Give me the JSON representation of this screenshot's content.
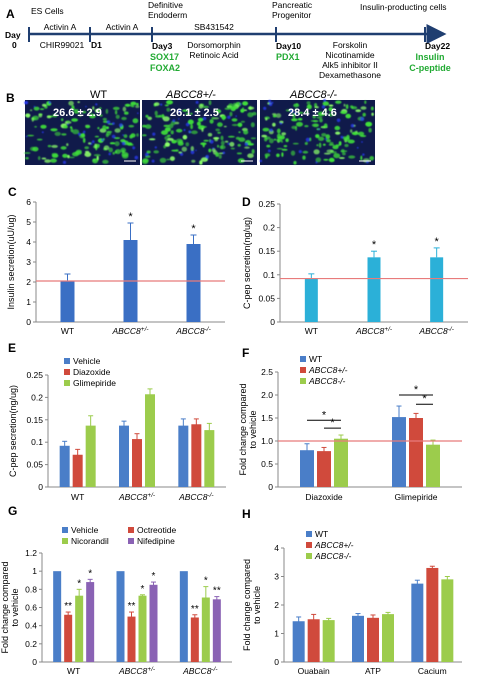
{
  "figure": {
    "panel_letters": {
      "A": "A",
      "B": "B",
      "C": "C",
      "D": "D",
      "E": "E",
      "F": "F",
      "G": "G",
      "H": "H"
    }
  },
  "timeline": {
    "stage_top": [
      "ES Cells",
      "Definitive",
      "Endoderm",
      "Pancreatic",
      "Progenitor",
      "Insulin-producting  cells"
    ],
    "day0a": "Day",
    "day0b": "0",
    "d1": "D1",
    "day3": "Day3",
    "day10": "Day10",
    "day22": "Day22",
    "seg1": [
      "Activin A",
      "CHIR99021"
    ],
    "seg2": [
      "Activin A"
    ],
    "seg3": [
      "SB431542",
      "Dorsomorphin",
      "Retinoic  Acid"
    ],
    "seg4": [
      "Forskolin",
      "Nicotinamide",
      "Alk5 inhibitor II",
      "Dexamethasone"
    ],
    "markers3": [
      "SOX17",
      "FOXA2"
    ],
    "markers10": [
      "PDX1"
    ],
    "markers22": [
      "Insulin",
      "C-peptide"
    ],
    "marker_color": "#22aa33"
  },
  "micrographs": [
    {
      "label": "WT",
      "value": "26.6 ± 2.9"
    },
    {
      "label": "ABCC8+/-",
      "value": "26.1 ± 2.5"
    },
    {
      "label": "ABCC8-/-",
      "value": "28.4 ± 4.6"
    }
  ],
  "chart_data": [
    {
      "panel": "C",
      "type": "bar",
      "categories": [
        "WT",
        "ABCC8+/-",
        "ABCC8-/-"
      ],
      "values": [
        2.05,
        4.1,
        3.9
      ],
      "errors": [
        0.35,
        0.85,
        0.45
      ],
      "sig": [
        "",
        "*",
        "*"
      ],
      "ylabel": "Insulin secretion(uU/ug)",
      "ylim": [
        0,
        6
      ],
      "yticks": [
        "0",
        "1",
        "2",
        "3",
        "4",
        "5",
        "6"
      ],
      "refline": 2.05,
      "color": "#3a6fc4"
    },
    {
      "panel": "D",
      "type": "bar",
      "categories": [
        "WT",
        "ABCC8+/-",
        "ABCC8-/-"
      ],
      "values": [
        0.092,
        0.137,
        0.137
      ],
      "errors": [
        0.01,
        0.013,
        0.02
      ],
      "sig": [
        "",
        "*",
        "*"
      ],
      "ylabel": "C-pep secretion(ng/ug)",
      "ylim": [
        0,
        0.25
      ],
      "yticks": [
        "0",
        "0.05",
        "0.1",
        "0.15",
        "0.2",
        "0.25"
      ],
      "refline": 0.092,
      "color": "#2bb0d8"
    },
    {
      "panel": "E",
      "type": "bar",
      "categories": [
        "WT",
        "ABCC8+/-",
        "ABCC8-/-"
      ],
      "series": [
        {
          "name": "Vehicle",
          "values": [
            0.092,
            0.137,
            0.137
          ],
          "errors": [
            0.01,
            0.01,
            0.015
          ]
        },
        {
          "name": "Diazoxide",
          "values": [
            0.072,
            0.107,
            0.14
          ],
          "errors": [
            0.012,
            0.012,
            0.012
          ]
        },
        {
          "name": "Glimepiride",
          "values": [
            0.137,
            0.207,
            0.127
          ],
          "errors": [
            0.022,
            0.012,
            0.015
          ]
        }
      ],
      "colors": [
        "#4a7ec8",
        "#d04a3c",
        "#9ccc4c"
      ],
      "ylabel": "C-pep secretion(ng/ug)",
      "ylim": [
        0,
        0.25
      ],
      "yticks": [
        "0",
        "0.05",
        "0.1",
        "0.15",
        "0.2",
        "0.25"
      ]
    },
    {
      "panel": "F",
      "type": "bar",
      "categories": [
        "Diazoxide",
        "Glimepiride"
      ],
      "series": [
        {
          "name": "WT",
          "values": [
            0.8,
            1.52
          ],
          "errors": [
            0.14,
            0.24
          ]
        },
        {
          "name": "ABCC8+/-",
          "values": [
            0.78,
            1.5
          ],
          "errors": [
            0.08,
            0.1
          ]
        },
        {
          "name": "ABCC8-/-",
          "values": [
            1.05,
            0.92
          ],
          "errors": [
            0.08,
            0.1
          ]
        }
      ],
      "colors": [
        "#4a7ec8",
        "#d04a3c",
        "#9ccc4c"
      ],
      "ylabel": "Fold change compared to vehicle",
      "ylim": [
        0,
        2.5
      ],
      "yticks": [
        "0",
        "0.5",
        "1.0",
        "1.5",
        "2.0",
        "2.5"
      ],
      "refline": 1.0
    },
    {
      "panel": "G",
      "type": "bar",
      "categories": [
        "WT",
        "ABCC8+/-",
        "ABCC8-/-"
      ],
      "series": [
        {
          "name": "Vehicle",
          "values": [
            1.0,
            1.0,
            1.0
          ],
          "errors": [
            0,
            0,
            0
          ]
        },
        {
          "name": "Octreotide",
          "values": [
            0.52,
            0.5,
            0.49
          ],
          "errors": [
            0.03,
            0.05,
            0.03
          ]
        },
        {
          "name": "Nicorandil",
          "values": [
            0.73,
            0.73,
            0.71
          ],
          "errors": [
            0.07,
            0.01,
            0.12
          ]
        },
        {
          "name": "Nifedipine",
          "values": [
            0.88,
            0.85,
            0.69
          ],
          "errors": [
            0.03,
            0.03,
            0.03
          ]
        }
      ],
      "sig": [
        [
          "",
          "**",
          "*",
          "*"
        ],
        [
          "",
          "**",
          "*",
          "*"
        ],
        [
          "",
          "**",
          "*",
          "**"
        ]
      ],
      "colors": [
        "#4a7ec8",
        "#d04a3c",
        "#9ccc4c",
        "#8a62b4"
      ],
      "ylabel": "Fold change compared to vehicle",
      "ylim": [
        0,
        1.2
      ],
      "yticks": [
        "0",
        "0.2",
        "0.4",
        "0.6",
        "0.8",
        "1",
        "1.2"
      ]
    },
    {
      "panel": "H",
      "type": "bar",
      "categories": [
        "Ouabain",
        "ATP",
        "Cacium"
      ],
      "series": [
        {
          "name": "WT",
          "values": [
            1.43,
            1.62,
            2.75
          ],
          "errors": [
            0.15,
            0.08,
            0.12
          ]
        },
        {
          "name": "ABCC8+/-",
          "values": [
            1.5,
            1.55,
            3.3
          ],
          "errors": [
            0.17,
            0.1,
            0.06
          ]
        },
        {
          "name": "ABCC8-/-",
          "values": [
            1.47,
            1.68,
            2.9
          ],
          "errors": [
            0.06,
            0.06,
            0.1
          ]
        }
      ],
      "colors": [
        "#4a7ec8",
        "#d04a3c",
        "#9ccc4c"
      ],
      "ylabel": "Fold change compared to vehicle",
      "ylim": [
        0,
        4
      ],
      "yticks": [
        "0",
        "1",
        "2",
        "3",
        "4"
      ]
    }
  ]
}
